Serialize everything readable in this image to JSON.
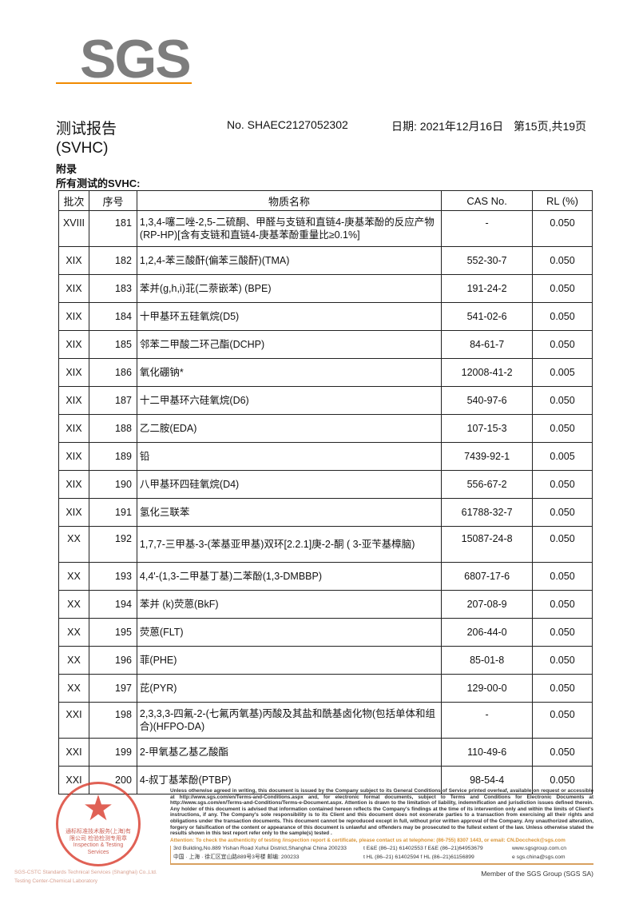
{
  "logo": "SGS",
  "header": {
    "title": "测试报告",
    "report_no": "No. SHAEC2127052302",
    "date": "日期: 2021年12月16日",
    "page": "第15页,共19页",
    "subtitle": "(SVHC)",
    "section": "附录",
    "section_sub": "所有测试的SVHC:"
  },
  "table": {
    "headers": [
      "批次",
      "序号",
      "物质名称",
      "CAS No.",
      "RL (%)"
    ],
    "rows": [
      [
        "XVIII",
        "181",
        "1,3,4-噻二唑-2,5-二硫酮、甲醛与支链和直链4-庚基苯酚的反应产物(RP-HP)[含有支链和直链4-庚基苯酚重量比≥0.1%]",
        "-",
        "0.050"
      ],
      [
        "XIX",
        "182",
        "1,2,4-苯三酸酐(偏苯三酸酐)(TMA)",
        "552-30-7",
        "0.050"
      ],
      [
        "XIX",
        "183",
        "苯并(g,h,i)苝(二萘嵌苯) (BPE)",
        "191-24-2",
        "0.050"
      ],
      [
        "XIX",
        "184",
        "十甲基环五硅氧烷(D5)",
        "541-02-6",
        "0.050"
      ],
      [
        "XIX",
        "185",
        "邻苯二甲酸二环己酯(DCHP)",
        "84-61-7",
        "0.050"
      ],
      [
        "XIX",
        "186",
        "氧化硼钠*",
        "12008-41-2",
        "0.005"
      ],
      [
        "XIX",
        "187",
        "十二甲基环六硅氧烷(D6)",
        "540-97-6",
        "0.050"
      ],
      [
        "XIX",
        "188",
        "乙二胺(EDA)",
        "107-15-3",
        "0.050"
      ],
      [
        "XIX",
        "189",
        "铅",
        "7439-92-1",
        "0.005"
      ],
      [
        "XIX",
        "190",
        "八甲基环四硅氧烷(D4)",
        "556-67-2",
        "0.050"
      ],
      [
        "XIX",
        "191",
        "氢化三联苯",
        "61788-32-7",
        "0.050"
      ],
      [
        "XX",
        "192",
        "1,7,7-三甲基-3-(苯基亚甲基)双环[2.2.1]庚-2-酮 ( 3-亚苄基樟脑)",
        "15087-24-8",
        "0.050"
      ],
      [
        "XX",
        "193",
        "4,4'-(1,3-二甲基丁基)二苯酚(1,3-DMBBP)",
        "6807-17-6",
        "0.050"
      ],
      [
        "XX",
        "194",
        "苯并 (k)荧蒽(BkF)",
        "207-08-9",
        "0.050"
      ],
      [
        "XX",
        "195",
        "荧蒽(FLT)",
        "206-44-0",
        "0.050"
      ],
      [
        "XX",
        "196",
        "菲(PHE)",
        "85-01-8",
        "0.050"
      ],
      [
        "XX",
        "197",
        "芘(PYR)",
        "129-00-0",
        "0.050"
      ],
      [
        "XXI",
        "198",
        "2,3,3,3-四氟-2-(七氟丙氧基)丙酸及其盐和酰基卤化物(包括单体和组合)(HFPO-DA)",
        "-",
        "0.050"
      ],
      [
        "XXI",
        "199",
        "2-甲氧基乙基乙酸酯",
        "110-49-6",
        "0.050"
      ],
      [
        "XXI",
        "200",
        "4-叔丁基苯酚(PTBP)",
        "98-54-4",
        "0.050"
      ]
    ]
  },
  "footer": {
    "stamp_text": "通标标准技术服务(上海)有限公司 检验检测专用章 Inspection & Testing Services",
    "legal": "Unless otherwise agreed in writing, this document is issued by the Company subject to its General Conditions of Service printed overleaf, available on request or accessible at http://www.sgs.com/en/Terms-and-Conditions.aspx and, for electronic format documents, subject to Terms and Conditions for Electronic Documents at http://www.sgs.com/en/Terms-and-Conditions/Terms-e-Document.aspx. Attention is drawn to the limitation of liability, indemnification and jurisdiction issues defined therein. Any holder of this document is advised that information contained hereon reflects the Company's findings at the time of its intervention only and within the limits of Client's instructions, if any. The Company's sole responsibility is to its Client and this document does not exonerate parties to a transaction from exercising all their rights and obligations under the transaction documents. This document cannot be reproduced except in full, without prior written approval of the Company. Any unauthorized alteration, forgery or falsification of the content or appearance of this document is unlawful and offenders may be prosecuted to the fullest extent of the law. Unless otherwise stated the results shown in this test report refer only to the sample(s) tested .",
    "attention": "Attention: To check the authenticity of testing /inspection report & certificate, please contact us at telephone: (86-755) 8307 1443, or email: CN.Doccheck@sgs.com",
    "addr_en": "3rd Building,No.889 Yishan Road Xuhui District,Shanghai China   200233",
    "addr_cn": "中国 · 上海 · 徐汇区宜山路889号3号楼   邮编: 200233",
    "tel1": "t E&E (86–21) 61402553   f E&E (86–21)64953679",
    "tel2": "t HL (86–21) 61402594   f HL (86–21)61156899",
    "web": "www.sgsgroup.com.cn",
    "email": "e  sgs.china@sgs.com",
    "sgscs1": "SGS-CSTC Standards Technical Services (Shanghai) Co.,Ltd.",
    "sgscs2": "Testing Center-Chemical Laboratory",
    "member": "Member of the SGS Group (SGS SA)"
  },
  "colors": {
    "logo_gray": "#7d7d7d",
    "logo_orange": "#f08a00",
    "stamp_red": "#d93a2b",
    "attention_orange": "#d8953a"
  }
}
